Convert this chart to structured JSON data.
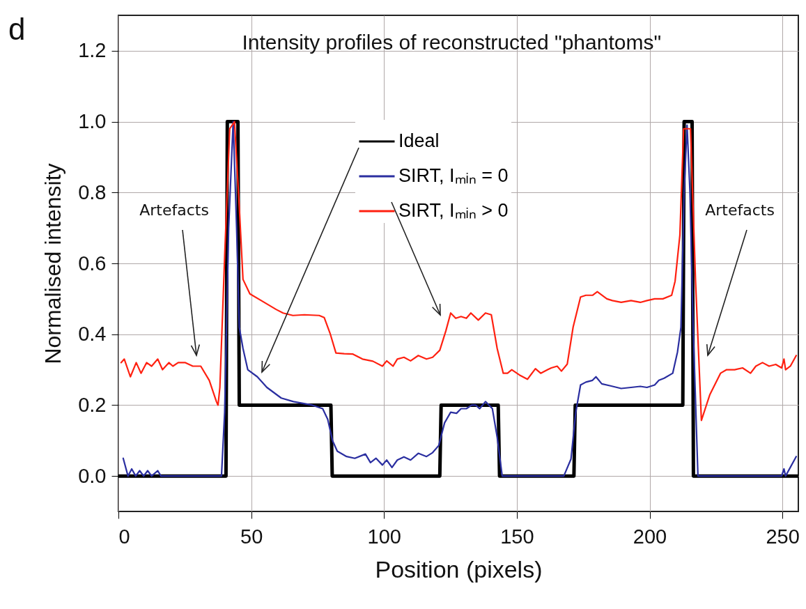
{
  "chart_data": {
    "type": "line",
    "title": "Intensity profiles of reconstructed \"phantoms\"",
    "xlabel": "Position (pixels)",
    "ylabel": "Normalised intensity",
    "xlim": [
      0,
      256
    ],
    "xticks": [
      0,
      50,
      100,
      150,
      200,
      250
    ],
    "ylim": [
      -0.1,
      1.3
    ],
    "yticks": [
      {
        "value": 0,
        "label": "0.0"
      },
      0.2,
      0.4,
      0.6,
      0.8,
      {
        "value": 1,
        "label": "1.0"
      },
      1.2
    ],
    "grid": true,
    "legend": "top",
    "marker": "none",
    "line_style": "solid",
    "series": [
      {
        "name": "Ideal",
        "color": "#000000",
        "x": [
          0,
          40.5,
          41,
          45,
          45.5,
          80,
          80.5,
          121,
          121.5,
          143,
          143.5,
          171.5,
          172,
          212.5,
          213,
          216,
          216.5,
          256
        ],
        "values": [
          0,
          0,
          1,
          1,
          0.2,
          0.2,
          0,
          0,
          0.2,
          0.2,
          0,
          0,
          0.2,
          0.2,
          1,
          1,
          0,
          0
        ]
      },
      {
        "name": "SIRT, Iₘᵢₙ = 0",
        "color": "#2a2ea0",
        "x": [
          1.8,
          3.6,
          5,
          6.5,
          8,
          9.5,
          11,
          12.5,
          14.8,
          16,
          38.8,
          40,
          41.5,
          43.2,
          44.5,
          45.5,
          46.9,
          48.7,
          52.3,
          55.9,
          61.3,
          65.9,
          73,
          76.9,
          78.8,
          80.6,
          82.4,
          85.9,
          89,
          93,
          94.9,
          97,
          99.4,
          101,
          103,
          105,
          107.5,
          110,
          112.9,
          116,
          118.3,
          120.6,
          122.8,
          125.1,
          127.3,
          129,
          131,
          133,
          134.5,
          136,
          138.2,
          140.8,
          142.6,
          144.5,
          167.7,
          170.4,
          172.2,
          174,
          176,
          178.5,
          179.8,
          182,
          185,
          189.3,
          193,
          196.5,
          199,
          201.9,
          203.5,
          205.5,
          208.7,
          210.5,
          211.8,
          213,
          214.1,
          215.2,
          216.4,
          218.2,
          249.7,
          250.6,
          251.2,
          255.2
        ],
        "values": [
          0.05,
          0,
          0.02,
          0,
          0.015,
          0,
          0.015,
          0,
          0.015,
          0,
          0,
          0.18,
          0.7,
          1.0,
          0.7,
          0.42,
          0.36,
          0.3,
          0.28,
          0.25,
          0.22,
          0.21,
          0.2,
          0.19,
          0.16,
          0.1,
          0.07,
          0.055,
          0.05,
          0.062,
          0.038,
          0.05,
          0.031,
          0.045,
          0.024,
          0.045,
          0.054,
          0.045,
          0.064,
          0.055,
          0.066,
          0.086,
          0.15,
          0.18,
          0.177,
          0.19,
          0.19,
          0.2,
          0.2,
          0.19,
          0.21,
          0.19,
          0.11,
          0,
          0,
          0.048,
          0.18,
          0.257,
          0.265,
          0.27,
          0.28,
          0.26,
          0.255,
          0.247,
          0.25,
          0.253,
          0.25,
          0.257,
          0.27,
          0.276,
          0.29,
          0.35,
          0.42,
          0.8,
          0.99,
          0.8,
          0.42,
          0,
          0,
          0.02,
          0,
          0.055
        ]
      },
      {
        "name": "SIRT, Iₘᵢₙ > 0",
        "color": "#ff2010",
        "x": [
          1,
          2.2,
          4.5,
          6.7,
          8.5,
          10.6,
          12.5,
          14.8,
          16.6,
          19,
          20.5,
          22.5,
          25.2,
          28,
          31,
          34.2,
          36.9,
          37.5,
          38.2,
          40,
          41.9,
          43.7,
          45.5,
          46.9,
          49.5,
          54,
          59.4,
          62,
          65.7,
          70,
          75.6,
          77.5,
          79.8,
          81.9,
          85,
          88.3,
          91.9,
          95.8,
          99.4,
          101,
          103.4,
          105,
          107.5,
          110,
          112.9,
          116,
          118.3,
          121,
          123.3,
          125.1,
          127,
          129,
          131,
          132.7,
          135.5,
          138.2,
          140.4,
          142.6,
          144.9,
          146.5,
          148.1,
          151,
          154,
          157,
          159,
          161.6,
          163,
          165.2,
          166.8,
          169,
          171.2,
          174,
          176,
          178.5,
          180.3,
          183.9,
          186,
          189.3,
          193,
          196.5,
          199,
          201.9,
          205,
          208.3,
          209.6,
          211.4,
          212.8,
          215.4,
          217.3,
          219.5,
          222.7,
          226.7,
          229,
          232,
          235,
          238,
          240,
          242.5,
          245,
          247.5,
          249.7,
          250.6,
          251.2,
          253,
          255.2
        ],
        "values": [
          0.32,
          0.33,
          0.28,
          0.32,
          0.29,
          0.32,
          0.31,
          0.33,
          0.3,
          0.32,
          0.31,
          0.32,
          0.32,
          0.31,
          0.31,
          0.27,
          0.21,
          0.2,
          0.25,
          0.62,
          0.98,
          1.0,
          0.76,
          0.555,
          0.514,
          0.494,
          0.47,
          0.46,
          0.453,
          0.455,
          0.453,
          0.447,
          0.4,
          0.347,
          0.345,
          0.344,
          0.33,
          0.324,
          0.31,
          0.325,
          0.31,
          0.33,
          0.335,
          0.325,
          0.34,
          0.33,
          0.335,
          0.355,
          0.41,
          0.46,
          0.445,
          0.45,
          0.445,
          0.46,
          0.44,
          0.46,
          0.455,
          0.36,
          0.29,
          0.29,
          0.3,
          0.285,
          0.273,
          0.303,
          0.29,
          0.3,
          0.305,
          0.31,
          0.296,
          0.316,
          0.42,
          0.505,
          0.51,
          0.51,
          0.52,
          0.5,
          0.495,
          0.49,
          0.495,
          0.49,
          0.495,
          0.5,
          0.5,
          0.51,
          0.55,
          0.68,
          0.98,
          0.98,
          0.55,
          0.157,
          0.23,
          0.29,
          0.3,
          0.3,
          0.305,
          0.29,
          0.31,
          0.32,
          0.31,
          0.315,
          0.305,
          0.33,
          0.3,
          0.31,
          0.34
        ]
      }
    ],
    "annotations": [
      "d",
      "Artefacts",
      "Artefacts"
    ]
  }
}
